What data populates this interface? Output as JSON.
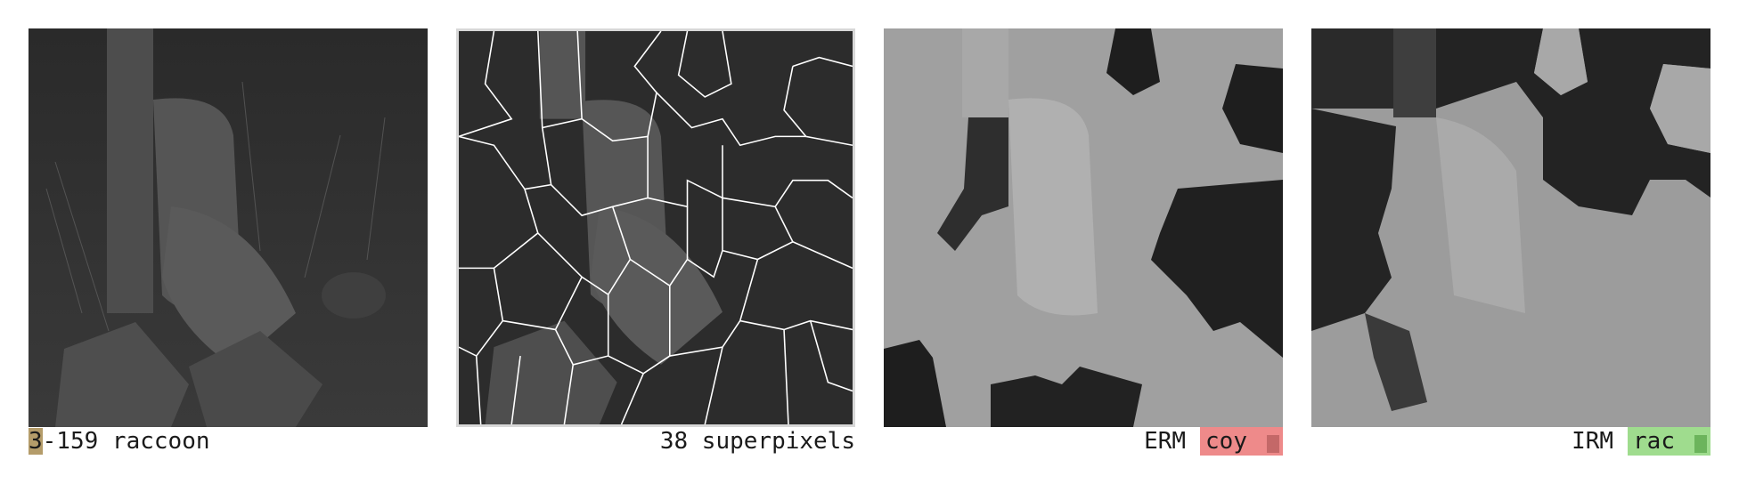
{
  "panels": [
    {
      "id": "original",
      "caption": "3-159 raccoon",
      "caption_highlight_first_char": true
    },
    {
      "id": "superpixels",
      "caption": "38 superpixels"
    },
    {
      "id": "erm",
      "method": "ERM",
      "prediction": "coy",
      "badge_color": "#ee8a8a"
    },
    {
      "id": "irm",
      "method": "IRM",
      "prediction": "rac",
      "badge_color": "#9fdc8e"
    }
  ],
  "colors": {
    "highlight": "#b49c6a",
    "superpixel_outline": "#ffffff",
    "erm_wrong": "#ee8a8a",
    "irm_correct": "#9fdc8e"
  }
}
